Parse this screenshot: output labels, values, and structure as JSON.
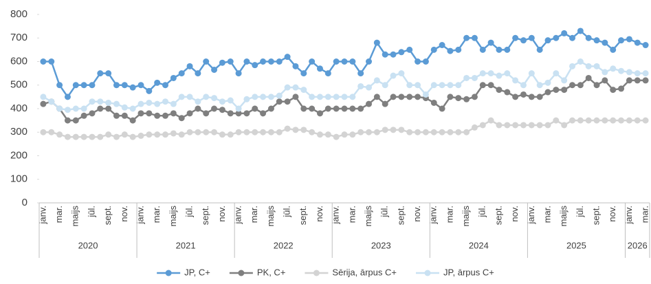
{
  "chart_data": {
    "type": "line",
    "categories": [
      "janv.",
      null,
      "mar.",
      null,
      "maijs",
      null,
      "jūl.",
      null,
      "sept.",
      null,
      "nov.",
      null,
      "janv.",
      null,
      "mar.",
      null,
      "maijs",
      null,
      "jūl.",
      null,
      "sept.",
      null,
      "nov.",
      null,
      "janv.",
      null,
      "mar.",
      null,
      "maijs",
      null,
      "jūl.",
      null,
      "sept.",
      null,
      "nov.",
      null,
      "janv.",
      null,
      "mar.",
      null,
      "maijs",
      null,
      "jūl.",
      null,
      "sept.",
      null,
      "nov.",
      null,
      "janv.",
      null,
      "mar.",
      null,
      "maijs",
      null,
      "jūl.",
      null,
      "sept.",
      null,
      "nov.",
      null,
      "janv.",
      null,
      "mar.",
      null,
      "maijs",
      null,
      "jūl.",
      null,
      "sept.",
      null,
      "nov.",
      null,
      "janv.",
      null,
      "mar."
    ],
    "years": [
      "2020",
      "2021",
      "2022",
      "2023",
      "2024",
      "2025",
      "2026"
    ],
    "ylim": [
      0,
      800
    ],
    "yticks": [
      0,
      100,
      200,
      300,
      400,
      500,
      600,
      700,
      800
    ],
    "legend": "bottom",
    "series": [
      {
        "name": "JP, C+",
        "color": "#5b9bd5",
        "values": [
          600,
          600,
          500,
          450,
          500,
          500,
          500,
          550,
          550,
          500,
          500,
          490,
          500,
          475,
          510,
          500,
          530,
          550,
          580,
          550,
          600,
          565,
          595,
          600,
          550,
          600,
          585,
          600,
          600,
          600,
          620,
          580,
          550,
          600,
          570,
          550,
          600,
          600,
          600,
          550,
          600,
          680,
          630,
          630,
          640,
          650,
          600,
          600,
          650,
          670,
          645,
          650,
          700,
          700,
          650,
          680,
          650,
          650,
          700,
          690,
          700,
          650,
          690,
          700,
          720,
          700,
          730,
          700,
          690,
          680,
          650,
          690,
          695,
          680,
          670
        ]
      },
      {
        "name": "PK, C+",
        "color": "#7f7f7f",
        "values": [
          420,
          430,
          400,
          350,
          350,
          370,
          380,
          400,
          400,
          370,
          370,
          350,
          380,
          380,
          370,
          370,
          380,
          360,
          380,
          400,
          380,
          400,
          395,
          380,
          380,
          380,
          400,
          380,
          400,
          430,
          430,
          450,
          400,
          400,
          380,
          400,
          400,
          400,
          400,
          400,
          420,
          450,
          420,
          450,
          450,
          450,
          450,
          445,
          425,
          400,
          450,
          445,
          440,
          450,
          500,
          500,
          480,
          470,
          450,
          460,
          450,
          450,
          470,
          480,
          480,
          500,
          500,
          530,
          500,
          520,
          480,
          485,
          520,
          520,
          520
        ]
      },
      {
        "name": "Sērija, ārpus C+",
        "color": "#d3d3d3",
        "values": [
          300,
          300,
          290,
          280,
          280,
          280,
          280,
          280,
          290,
          280,
          290,
          280,
          285,
          290,
          290,
          290,
          295,
          290,
          300,
          300,
          300,
          300,
          290,
          290,
          300,
          300,
          300,
          300,
          300,
          300,
          315,
          310,
          310,
          300,
          290,
          290,
          280,
          290,
          290,
          300,
          300,
          300,
          310,
          310,
          310,
          300,
          300,
          300,
          300,
          300,
          300,
          300,
          300,
          320,
          330,
          350,
          330,
          330,
          330,
          330,
          330,
          330,
          330,
          350,
          330,
          350,
          350,
          350,
          350,
          350,
          350,
          350,
          350,
          350,
          350
        ]
      },
      {
        "name": "JP, ārpus C+",
        "color": "#c9e1f2",
        "values": [
          450,
          430,
          400,
          395,
          400,
          400,
          430,
          430,
          425,
          420,
          405,
          400,
          420,
          425,
          420,
          430,
          420,
          450,
          450,
          430,
          450,
          445,
          430,
          435,
          400,
          440,
          450,
          450,
          450,
          455,
          490,
          490,
          480,
          450,
          450,
          450,
          450,
          450,
          450,
          495,
          490,
          520,
          500,
          540,
          550,
          500,
          500,
          460,
          500,
          500,
          500,
          500,
          530,
          530,
          550,
          550,
          540,
          550,
          520,
          500,
          550,
          500,
          510,
          550,
          520,
          580,
          600,
          580,
          580,
          555,
          570,
          560,
          555,
          550,
          550
        ]
      }
    ]
  }
}
